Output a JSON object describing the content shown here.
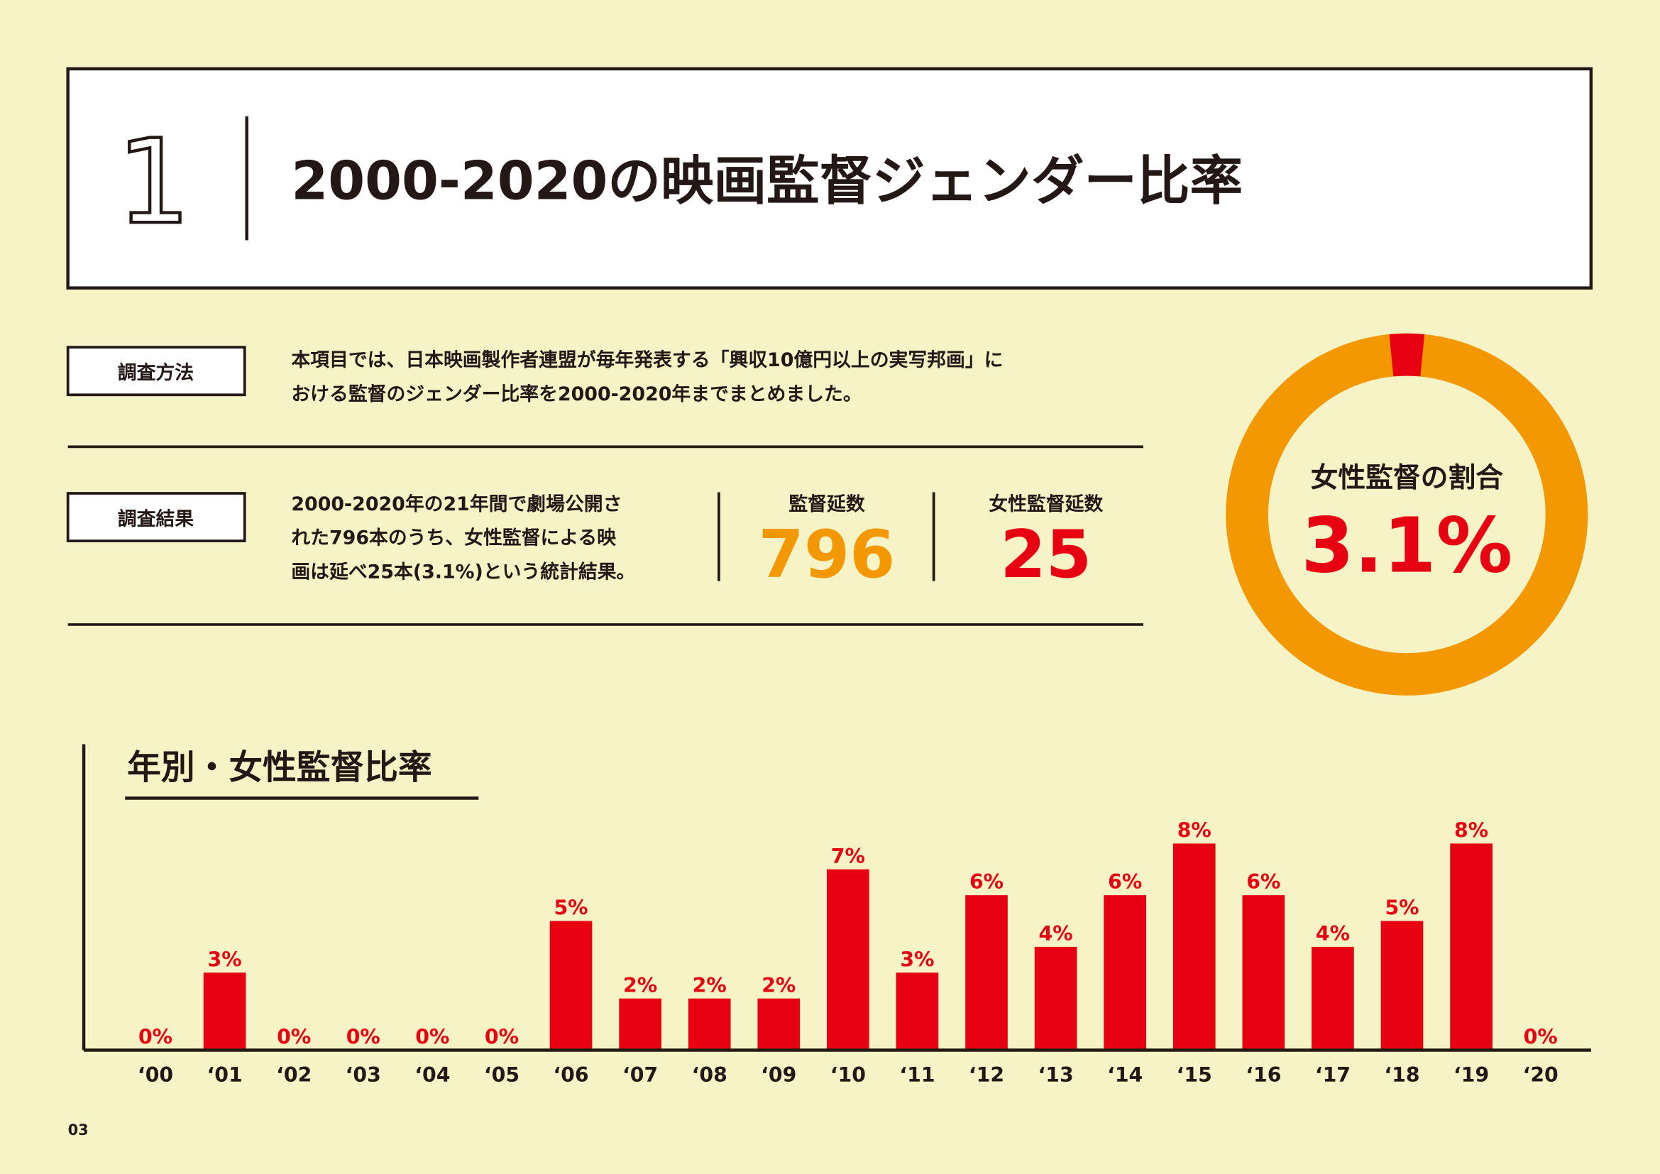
{
  "header": {
    "number": "1",
    "title": "2000-2020の映画監督ジェンダー比率"
  },
  "method": {
    "label": "調査方法",
    "lines": [
      "本項目では、日本映画製作者連盟が毎年発表する「興収10億円以上の実写邦画」に",
      "おける監督のジェンダー比率を2000-2020年までまとめました。"
    ]
  },
  "result": {
    "label": "調査結果",
    "lines": [
      "2000-2020年の21年間で劇場公開さ",
      "れた796本のうち、女性監督による映",
      "画は延べ25本(3.1%)という統計結果。"
    ],
    "stats": [
      {
        "label": "監督延数",
        "value": 796,
        "color": "#f39800"
      },
      {
        "label": "女性監督延数",
        "value": 25,
        "color": "#e60012"
      }
    ]
  },
  "donut": {
    "title": "女性監督の割合",
    "value": 3.1,
    "value_label": "3.1%",
    "color": "#e60012",
    "rest_color": "#f39800"
  },
  "chart_data": {
    "type": "bar",
    "title": "年別・女性監督比率",
    "categories": [
      "‘00",
      "‘01",
      "‘02",
      "‘03",
      "‘04",
      "‘05",
      "‘06",
      "‘07",
      "‘08",
      "‘09",
      "‘10",
      "‘11",
      "‘12",
      "‘13",
      "‘14",
      "‘15",
      "‘16",
      "‘17",
      "‘18",
      "‘19",
      "‘20"
    ],
    "values": [
      0,
      3,
      0,
      0,
      0,
      0,
      5,
      2,
      2,
      2,
      7,
      3,
      6,
      4,
      6,
      8,
      6,
      4,
      5,
      8,
      0
    ],
    "value_labels": [
      "0%",
      "3%",
      "0%",
      "0%",
      "0%",
      "0%",
      "5%",
      "2%",
      "2%",
      "2%",
      "7%",
      "3%",
      "6%",
      "4%",
      "6%",
      "8%",
      "6%",
      "4%",
      "5%",
      "8%",
      "0%"
    ],
    "color": "#e60012",
    "ylim": [
      0,
      10
    ]
  },
  "page_number": "03"
}
